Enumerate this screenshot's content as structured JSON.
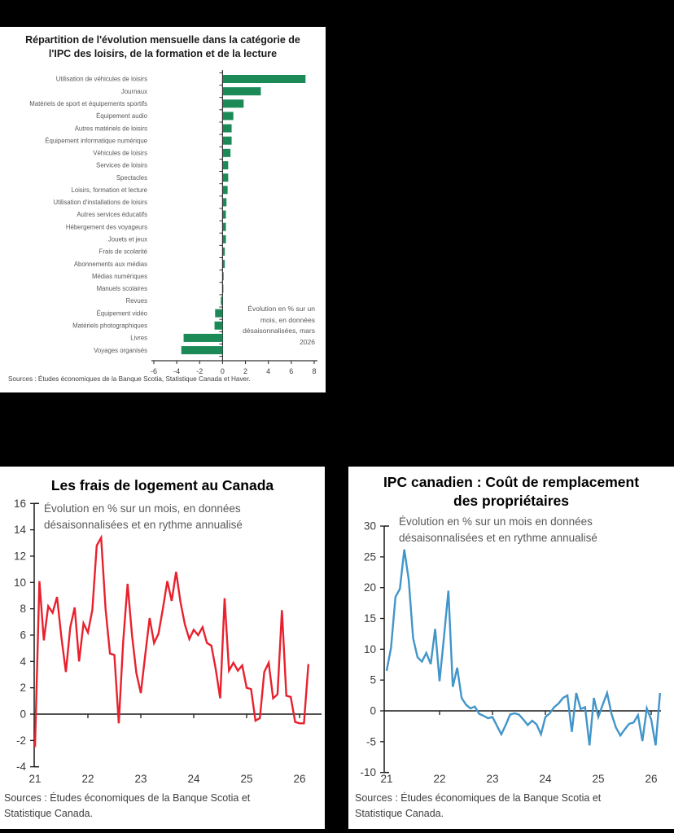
{
  "page": {
    "background": "#000000",
    "panel_background": "#ffffff"
  },
  "chart_data": [
    {
      "type": "bar",
      "orientation": "horizontal",
      "title": "Répartition de l'évolution mensuelle dans la catégorie de l'IPC des loisirs, de la formation et de la lecture",
      "annotation": "Évolution en % sur un mois, en données désaisonnalisées, mars 2026",
      "source": "Sources : Études économiques de la Banque Scotia, Statistique Canada et Haver.",
      "bar_color": "#1b8a57",
      "xlim": [
        -6,
        8
      ],
      "xticks": [
        -6,
        -4,
        -2,
        0,
        2,
        4,
        6,
        8
      ],
      "categories": [
        "Utilisation de véhicules de loisirs",
        "Journaux",
        "Matériels de sport et équipements sportifs",
        "Équipement audio",
        "Autres matériels de loisirs",
        "Équipement informatique numérique",
        "Véhicules de loisirs",
        "Services de loisirs",
        "Spectacles",
        "Loisirs, formation et lecture",
        "Utilisation d'installations de loisirs",
        "Autres services éducatifs",
        "Hébergement des voyageurs",
        "Jouets et jeux",
        "Frais de scolarité",
        "Abonnements aux médias",
        "Médias numériques",
        "Manuels scolaires",
        "Revues",
        "Équipement vidéo",
        "Matériels photographiques",
        "Livres",
        "Voyages organisés"
      ],
      "values": [
        7.2,
        3.3,
        1.8,
        0.9,
        0.75,
        0.75,
        0.65,
        0.45,
        0.45,
        0.4,
        0.3,
        0.25,
        0.25,
        0.25,
        0.15,
        0.15,
        0.05,
        0.03,
        -0.15,
        -0.65,
        -0.7,
        -3.4,
        -3.6
      ]
    },
    {
      "type": "line",
      "title": "Les frais de logement au Canada",
      "subtitle": "Évolution en % sur un mois, en données désaisonnalisées et en rythme annualisé",
      "source": "Sources : Études économiques de la Banque Scotia et Statistique Canada.",
      "line_color": "#e8212d",
      "x_start": "janvier 2021",
      "x_frequency": "mensuelle",
      "x_tick_labels": [
        "21",
        "22",
        "23",
        "24",
        "25",
        "26"
      ],
      "ylim": [
        -4,
        16
      ],
      "yticks": [
        16,
        14,
        12,
        10,
        8,
        6,
        4,
        2,
        0,
        -2,
        -4
      ],
      "values": [
        -2.5,
        10.1,
        5.6,
        8.2,
        7.7,
        8.9,
        5.8,
        3.2,
        6.6,
        8.1,
        4.0,
        6.9,
        6.2,
        7.9,
        12.8,
        13.4,
        8.0,
        4.6,
        4.5,
        -0.7,
        5.5,
        9.9,
        6.0,
        3.1,
        1.6,
        4.5,
        7.3,
        5.4,
        6.1,
        8.0,
        10.1,
        8.6,
        10.8,
        8.5,
        6.8,
        5.7,
        6.4,
        6.0,
        6.6,
        5.4,
        5.2,
        3.4,
        1.2,
        8.8,
        3.3,
        3.9,
        3.3,
        3.7,
        2.0,
        1.9,
        -0.5,
        -0.3,
        3.2,
        3.9,
        1.2,
        1.5,
        7.9,
        1.4,
        1.3,
        -0.6,
        -0.7,
        -0.7,
        3.8
      ]
    },
    {
      "type": "line",
      "title": "IPC canadien : Coût de remplacement des propriétaires",
      "subtitle": "Évolution en % sur un mois en données désaisonnalisées et en rythme annualisé",
      "source": "Sources : Études économiques de la Banque Scotia et Statistique Canada.",
      "line_color": "#4195c9",
      "x_start": "janvier 2021",
      "x_frequency": "mensuelle",
      "x_tick_labels": [
        "21",
        "22",
        "23",
        "24",
        "25",
        "26"
      ],
      "ylim": [
        -10,
        30
      ],
      "yticks": [
        30,
        25,
        20,
        15,
        10,
        5,
        0,
        -5,
        -10
      ],
      "values": [
        6.5,
        10.3,
        18.5,
        19.8,
        26.2,
        21.3,
        11.8,
        8.7,
        8.0,
        9.4,
        7.6,
        13.3,
        4.8,
        12.0,
        19.5,
        3.9,
        7.0,
        2.1,
        1.0,
        0.4,
        0.7,
        -0.5,
        -0.8,
        -1.2,
        -1.0,
        -2.4,
        -3.8,
        -2.3,
        -0.6,
        -0.4,
        -0.6,
        -1.4,
        -2.3,
        -1.6,
        -2.2,
        -3.8,
        -1.0,
        -0.4,
        0.6,
        1.2,
        2.1,
        2.5,
        -3.4,
        2.9,
        0.3,
        0.6,
        -5.6,
        2.1,
        -1.0,
        1.0,
        2.9,
        -0.5,
        -2.7,
        -4.0,
        -3.0,
        -2.1,
        -1.9,
        -0.7,
        -4.9,
        0.4,
        -1.4,
        -5.6,
        2.9
      ]
    }
  ]
}
